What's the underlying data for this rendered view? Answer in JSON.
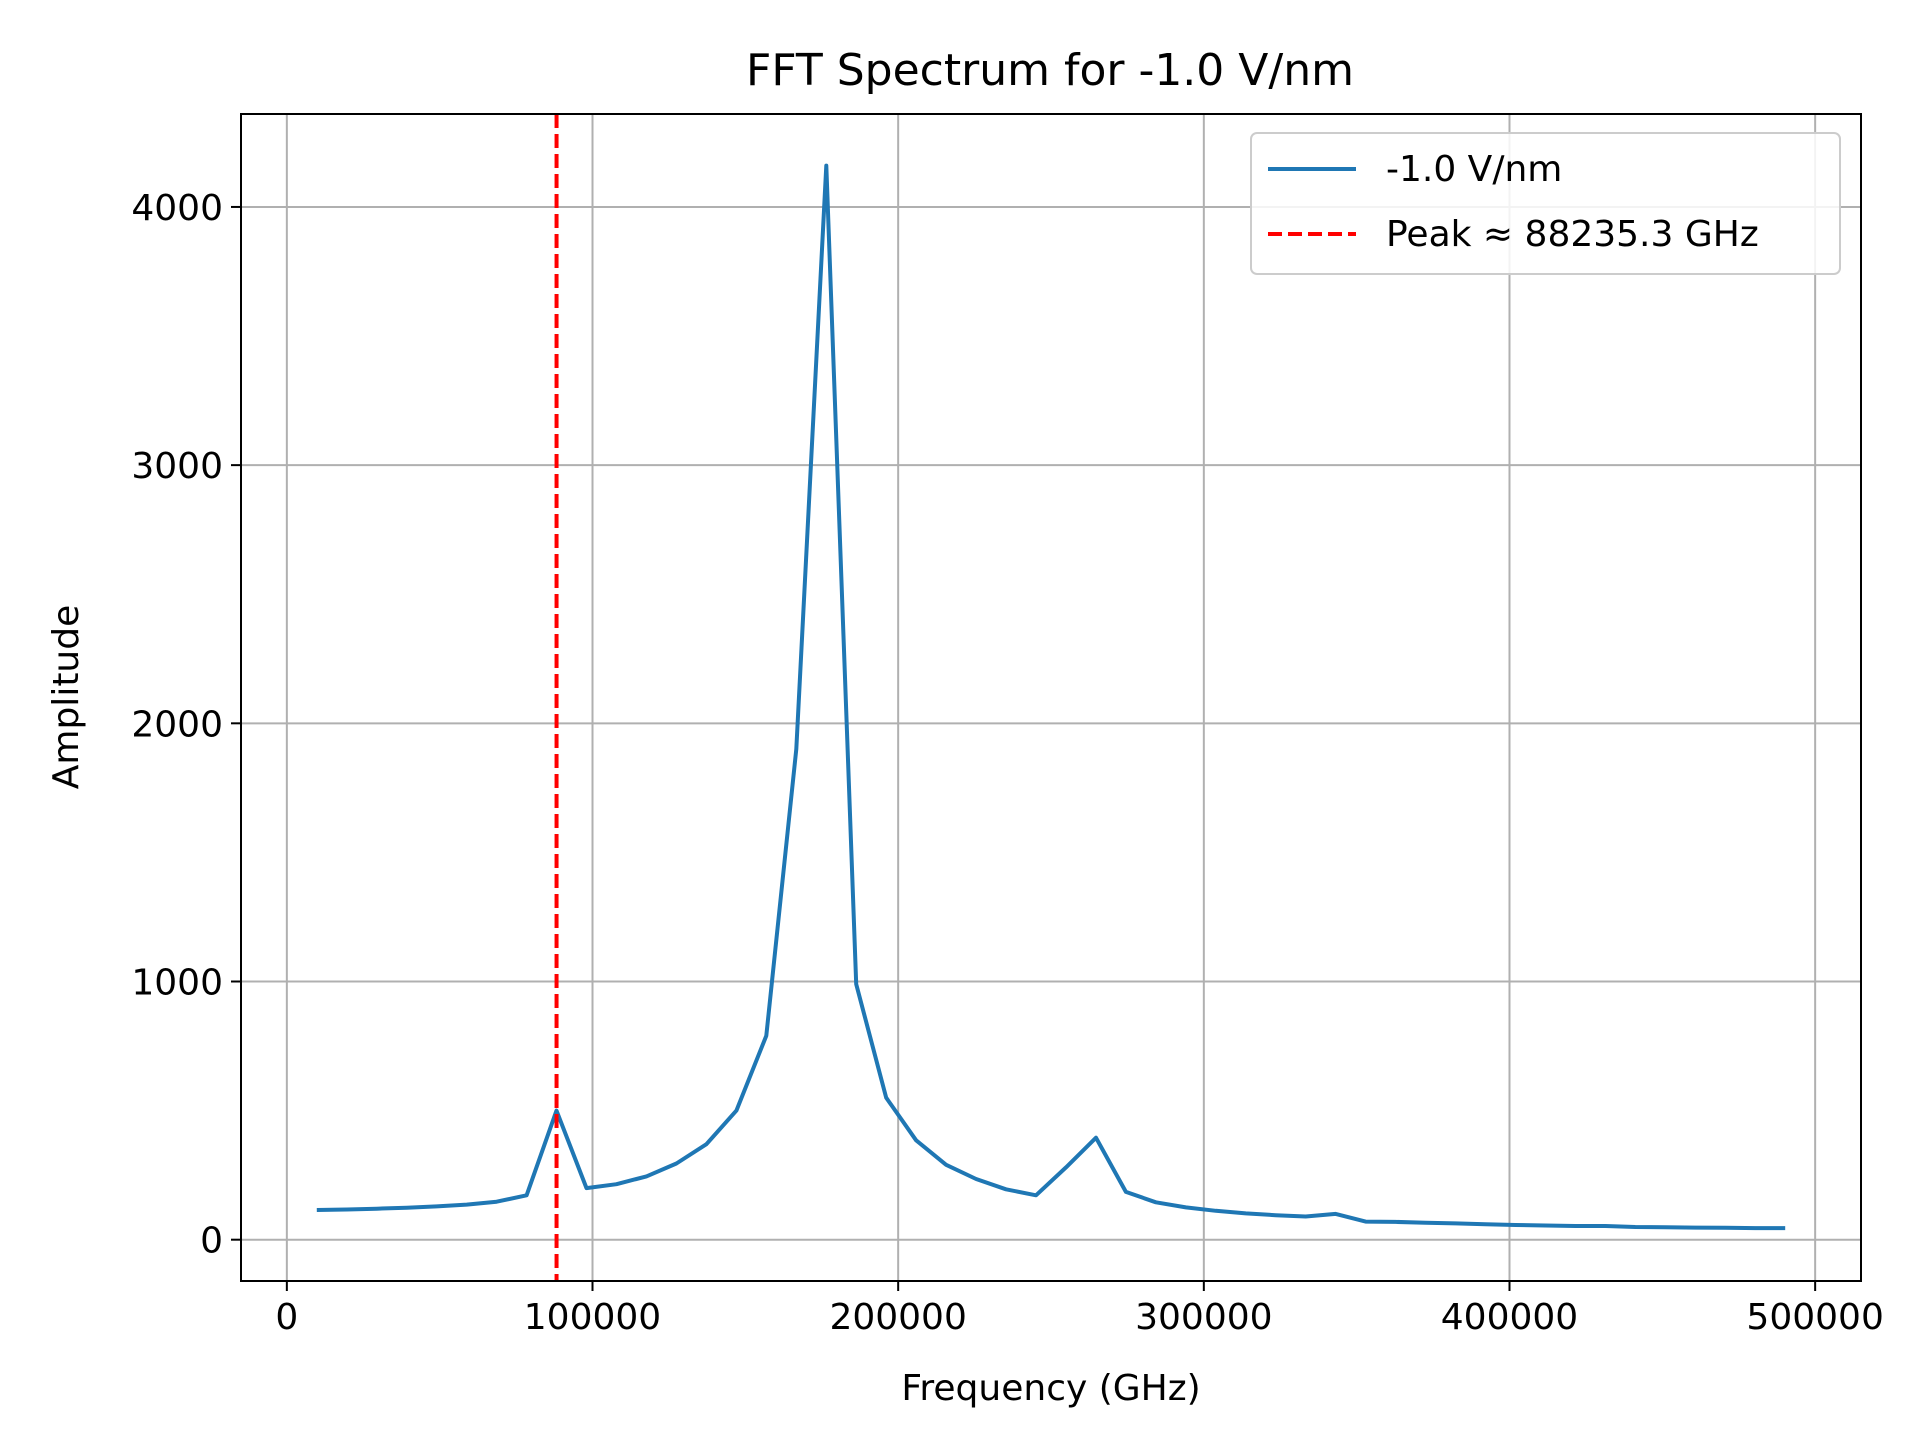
{
  "chart_data": {
    "type": "line",
    "title": "FFT Spectrum for -1.0 V/nm",
    "xlabel": "Frequency (GHz)",
    "ylabel": "Amplitude",
    "xlim": [
      -15000,
      515000
    ],
    "ylim": [
      -160,
      4360
    ],
    "xticks": [
      0,
      100000,
      200000,
      300000,
      400000,
      500000
    ],
    "xtick_labels": [
      "0",
      "100000",
      "200000",
      "300000",
      "400000",
      "500000"
    ],
    "yticks": [
      0,
      1000,
      2000,
      3000,
      4000
    ],
    "ytick_labels": [
      "0",
      "1000",
      "2000",
      "3000",
      "4000"
    ],
    "grid": true,
    "legend_position": "top-right",
    "series": [
      {
        "name": "-1.0 V/nm",
        "color": "#1f77b4",
        "style": "solid",
        "x": [
          9804,
          19608,
          29412,
          39216,
          49020,
          58824,
          68627,
          78431,
          88235,
          98039,
          107843,
          117647,
          127451,
          137255,
          147059,
          156863,
          166667,
          176471,
          186275,
          196078,
          205882,
          215686,
          225490,
          235294,
          245098,
          254902,
          264706,
          274510,
          284314,
          294118,
          303922,
          313725,
          323529,
          333333,
          343137,
          352941,
          362745,
          372549,
          382353,
          392157,
          401961,
          411765,
          421569,
          431373,
          441176,
          450980,
          460784,
          470588,
          480392,
          490196
        ],
        "y": [
          115,
          117,
          120,
          124,
          129,
          136,
          147,
          172,
          500,
          200,
          215,
          245,
          295,
          370,
          500,
          790,
          1900,
          4160,
          990,
          550,
          385,
          290,
          235,
          195,
          172,
          280,
          395,
          185,
          145,
          125,
          112,
          102,
          95,
          90,
          100,
          70,
          69,
          66,
          63,
          60,
          57,
          55,
          53,
          53,
          49,
          48,
          47,
          46,
          45,
          45
        ]
      },
      {
        "name": "Peak ≈ 88235.3 GHz",
        "color": "#ff0000",
        "style": "dashed",
        "vline_x": 88235.3
      }
    ]
  }
}
